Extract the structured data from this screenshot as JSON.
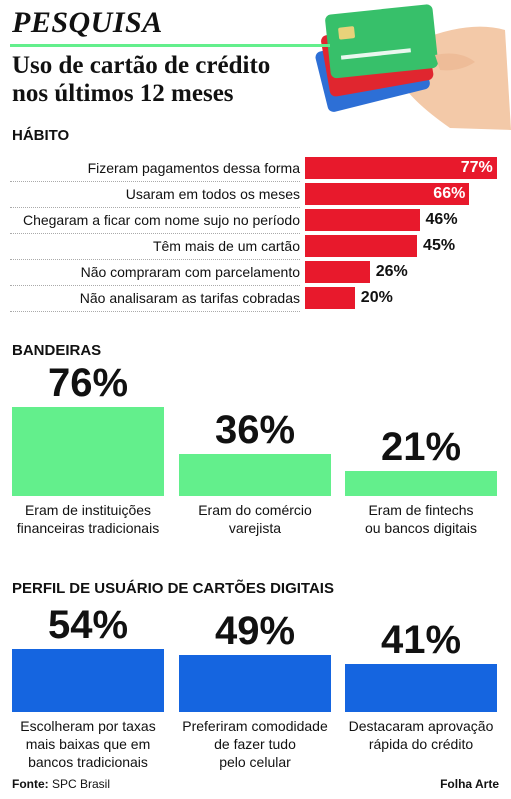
{
  "header": {
    "kicker": "PESQUISA",
    "title": [
      "Uso de cartão de crédito",
      "nos últimos 12 meses"
    ]
  },
  "chart_data": [
    {
      "type": "hbar",
      "title": "HÁBITO",
      "color": "#e8192c",
      "categories": [
        "Fizeram pagamentos dessa forma",
        "Usaram em todos os meses",
        "Chegaram a ficar com nome sujo no período",
        "Têm mais de um cartão",
        "Não compraram com parcelamento",
        "Não analisaram as tarifas cobradas"
      ],
      "values": [
        77,
        66,
        46,
        45,
        26,
        20
      ],
      "value_labels": [
        "77%",
        "66%",
        "46%",
        "45%",
        "26%",
        "20%"
      ]
    },
    {
      "type": "column",
      "title": "BANDEIRAS",
      "color": "#63ef8c",
      "categories": [
        [
          "Eram de instituições",
          "financeiras tradicionais"
        ],
        [
          "Eram do comércio",
          "varejista"
        ],
        [
          "Eram de fintechs",
          "ou bancos digitais"
        ]
      ],
      "values": [
        76,
        36,
        21
      ],
      "value_labels": [
        "76%",
        "36%",
        "21%"
      ]
    },
    {
      "type": "column",
      "title": "PERFIL DE USUÁRIO DE CARTÕES DIGITAIS",
      "color": "#1565e0",
      "categories": [
        [
          "Escolheram por taxas",
          "mais baixas que em",
          "bancos tradicionais"
        ],
        [
          "Preferiram comodidade",
          "de fazer tudo",
          "pelo celular"
        ],
        [
          "Destacaram aprovação",
          "rápida do crédito"
        ]
      ],
      "values": [
        54,
        49,
        41
      ],
      "value_labels": [
        "54%",
        "49%",
        "41%"
      ]
    }
  ],
  "footer": {
    "source_label": "Fonte:",
    "source": "SPC Brasil",
    "credit": "Folha Arte"
  }
}
